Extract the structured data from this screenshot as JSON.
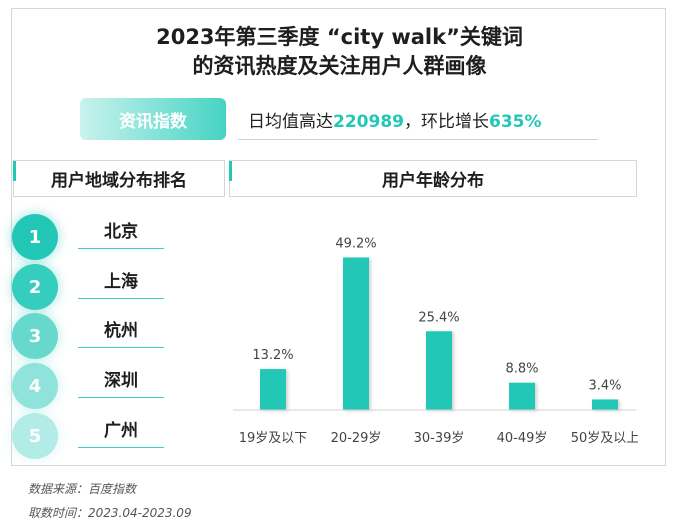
{
  "title": {
    "line1": "2023年第三季度 “city walk”关键词",
    "line2": "的资讯热度及关注用户人群画像"
  },
  "index": {
    "badge_label": "资讯指数",
    "stat_prefix": "日均值高达",
    "stat_value": "220989",
    "stat_middle": "，环比增长",
    "stat_change": "635%"
  },
  "region": {
    "heading": "用户地域分布排名",
    "items": [
      {
        "rank": "1",
        "city": "北京",
        "color": "#22c7b6"
      },
      {
        "rank": "2",
        "city": "上海",
        "color": "#35cdbd"
      },
      {
        "rank": "3",
        "city": "杭州",
        "color": "#66d9cc"
      },
      {
        "rank": "4",
        "city": "深圳",
        "color": "#8fe3da"
      },
      {
        "rank": "5",
        "city": "广州",
        "color": "#b3ece6"
      }
    ]
  },
  "age": {
    "heading": "用户年龄分布"
  },
  "chart_data": {
    "type": "bar",
    "title": "用户年龄分布",
    "categories": [
      "19岁及以下",
      "20-29岁",
      "30-39岁",
      "40-49岁",
      "50岁及以上"
    ],
    "values": [
      13.2,
      49.2,
      25.4,
      8.8,
      3.4
    ],
    "value_labels": [
      "13.2%",
      "49.2%",
      "25.4%",
      "8.8%",
      "3.4%"
    ],
    "ylim": [
      0,
      50
    ],
    "unit": "%",
    "bar_color": "#22c7b6",
    "grid": false
  },
  "footer": {
    "source": "数据来源：百度指数",
    "period": "取数时间：2023.04-2023.09"
  }
}
